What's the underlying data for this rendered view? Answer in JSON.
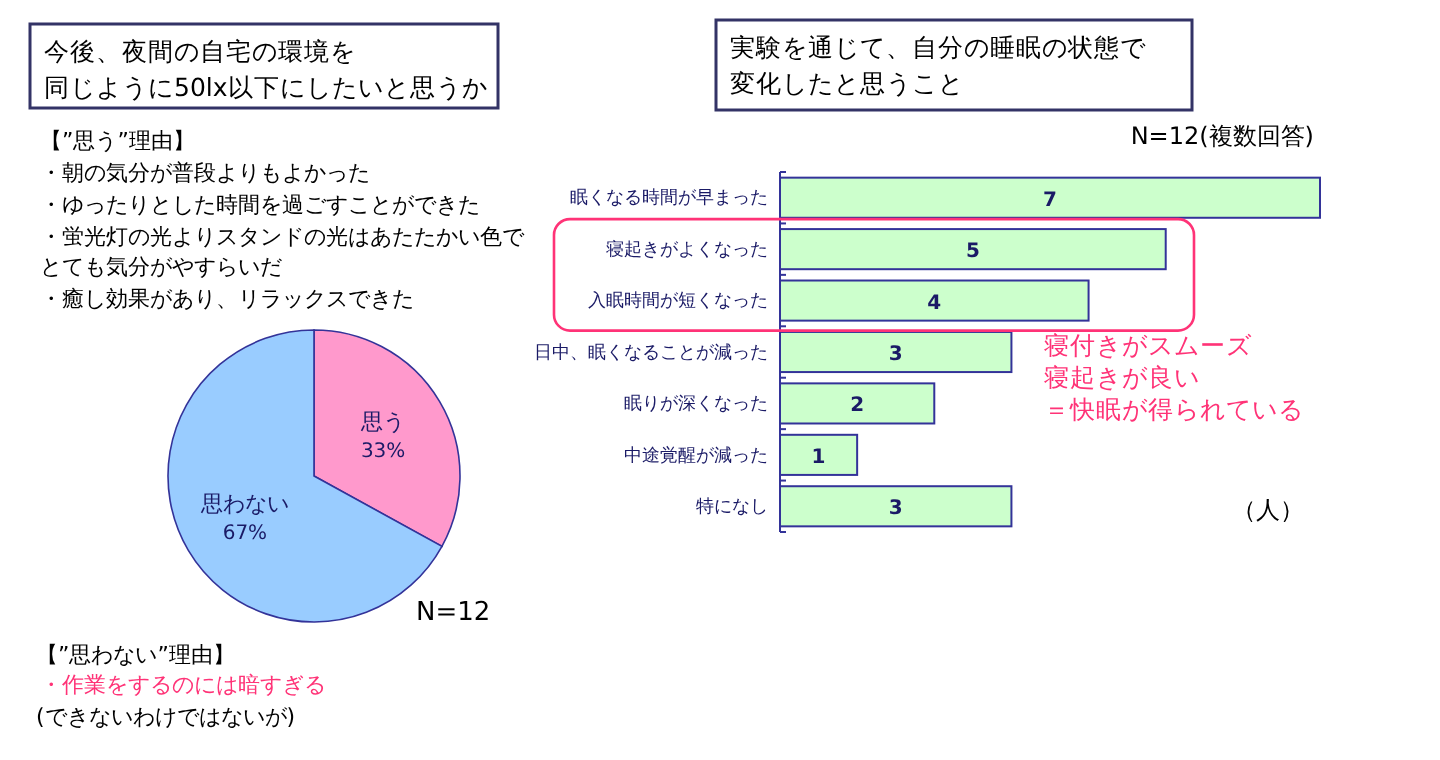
{
  "chart_data": [
    {
      "type": "pie",
      "title": "今後、夜間の自宅の環境を同じように50lx以下にしたいと思うか",
      "categories": [
        "思う",
        "思わない"
      ],
      "values": [
        33,
        67
      ],
      "colors": [
        "#ff99cc",
        "#99ccff"
      ],
      "value_labels": [
        "33%",
        "67%"
      ],
      "annotations": [
        "【”思う”理由】",
        "・朝の気分が普段よりもよかった",
        "・ゆったりとした時間を過ごすことができた",
        "・蛍光灯の光よりスタンドの光はあたたかい色でとても気分がやすらいだ",
        "・癒し効果があり、リラックスできた",
        "N=12",
        "【”思わない”理由】",
        "・作業をするのには暗すぎる",
        "(できないわけではないが)"
      ]
    },
    {
      "type": "bar",
      "orientation": "horizontal",
      "title": "実験を通じて、自分の睡眠の状態で変化したと思うこと",
      "categories": [
        "眠くなる時間が早まった",
        "寝起きがよくなった",
        "入眠時間が短くなった",
        "日中、眠くなることが減った",
        "眠りが深くなった",
        "中途覚醒が減った",
        "特になし"
      ],
      "values": [
        7,
        5,
        4,
        3,
        2,
        1,
        3
      ],
      "color": "#ccffcc",
      "data_labels": true,
      "annotations": [
        "N=12(複数回答)",
        "寝付きがスムーズ寝起きが良い＝快眠が得られている",
        "（人）"
      ]
    }
  ]
}
